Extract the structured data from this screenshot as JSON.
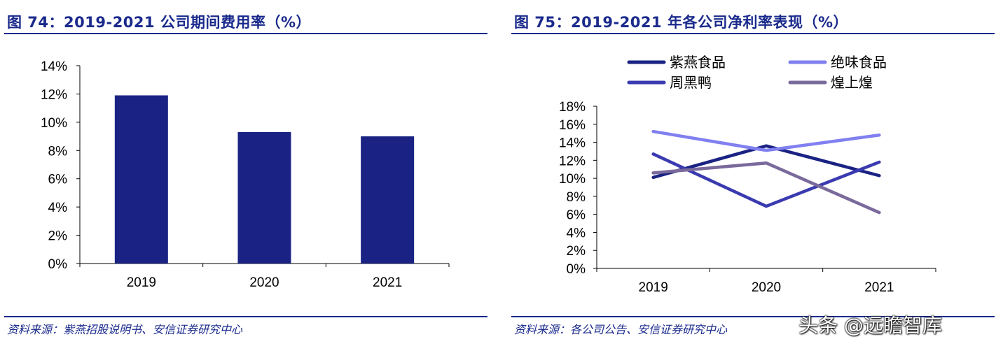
{
  "left_panel": {
    "title": "图 74：2019-2021 公司期间费用率（%）",
    "source": "资料来源：紫燕招股说明书、安信证券研究中心"
  },
  "right_panel": {
    "title": "图 75：2019-2021 年各公司净利率表现（%）",
    "source": "资料来源：各公司公告、安信证券研究中心"
  },
  "watermark": "头条 @远瞻智库",
  "colors": {
    "accent": "#1a2a8c",
    "bar": "#1a2383"
  },
  "chart_data": [
    {
      "type": "bar",
      "title": "图 74：2019-2021 公司期间费用率（%）",
      "categories": [
        "2019",
        "2020",
        "2021"
      ],
      "values": [
        11.9,
        9.3,
        9.0
      ],
      "ylim": [
        0,
        14
      ],
      "yticks": [
        0,
        2,
        4,
        6,
        8,
        10,
        12,
        14
      ],
      "ytick_labels": [
        "0%",
        "2%",
        "4%",
        "6%",
        "8%",
        "10%",
        "12%",
        "14%"
      ],
      "xlabel": "",
      "ylabel": "",
      "legend": "none",
      "grid": false
    },
    {
      "type": "line",
      "title": "图 75：2019-2021 年各公司净利率表现（%）",
      "categories": [
        "2019",
        "2020",
        "2021"
      ],
      "series": [
        {
          "name": "紫燕食品",
          "values": [
            10.1,
            13.6,
            10.3
          ],
          "color": "#1a2383"
        },
        {
          "name": "绝味食品",
          "values": [
            15.2,
            13.1,
            14.8
          ],
          "color": "#8080f0"
        },
        {
          "name": "周黑鸭",
          "values": [
            12.7,
            6.9,
            11.8
          ],
          "color": "#3a3ab0"
        },
        {
          "name": "煌上煌",
          "values": [
            10.6,
            11.7,
            6.2
          ],
          "color": "#7a6a9c"
        }
      ],
      "ylim": [
        0,
        18
      ],
      "yticks": [
        0,
        2,
        4,
        6,
        8,
        10,
        12,
        14,
        16,
        18
      ],
      "ytick_labels": [
        "0%",
        "2%",
        "4%",
        "6%",
        "8%",
        "10%",
        "12%",
        "14%",
        "16%",
        "18%"
      ],
      "xlabel": "",
      "ylabel": "",
      "legend": "top",
      "grid": false
    }
  ]
}
